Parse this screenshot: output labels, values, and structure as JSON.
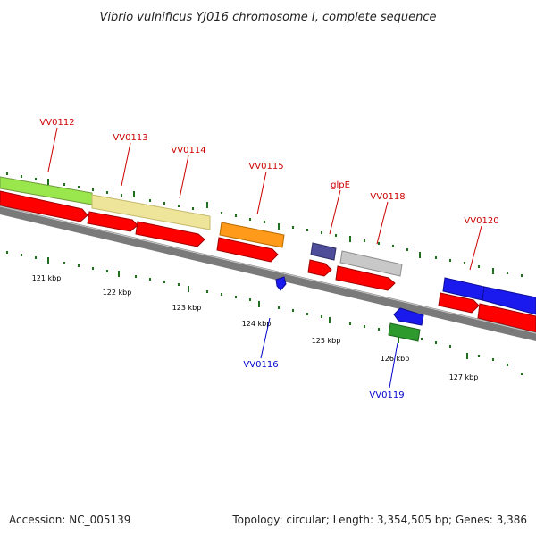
{
  "title": "Vibrio vulnificus YJ016 chromosome I, complete sequence",
  "footer": {
    "accession": "Accession: NC_005139",
    "stats": "Topology: circular; Length: 3,354,505 bp; Genes: 3,386"
  },
  "colors": {
    "backbone": "#7a7a7a",
    "cds_arrow": "#ff0000",
    "tick": "#1f6f1f",
    "label_red": "#cc0000",
    "label_blue": "#0000cc"
  },
  "ticks": [
    "121 kbp",
    "122 kbp",
    "123 kbp",
    "124 kbp",
    "125 kbp",
    "126 kbp",
    "127 kbp"
  ],
  "genes_above": [
    {
      "name": "VV0112",
      "color": "#99e64d"
    },
    {
      "name": "VV0113",
      "color": "#eee59a"
    },
    {
      "name": "VV0114",
      "color": ""
    },
    {
      "name": "VV0115",
      "color": "#ff9a1a"
    },
    {
      "name": "glpE",
      "color": "#4d4d99"
    },
    {
      "name": "VV0118",
      "color": "#c8c8c8"
    },
    {
      "name": "VV0120",
      "color": "#1a1aee"
    }
  ],
  "genes_below": [
    {
      "name": "VV0116",
      "color": "#1a1aee"
    },
    {
      "name": "VV0119",
      "color": "#2e9a2e"
    }
  ],
  "extra_below_feature_color": "#1a1aee"
}
